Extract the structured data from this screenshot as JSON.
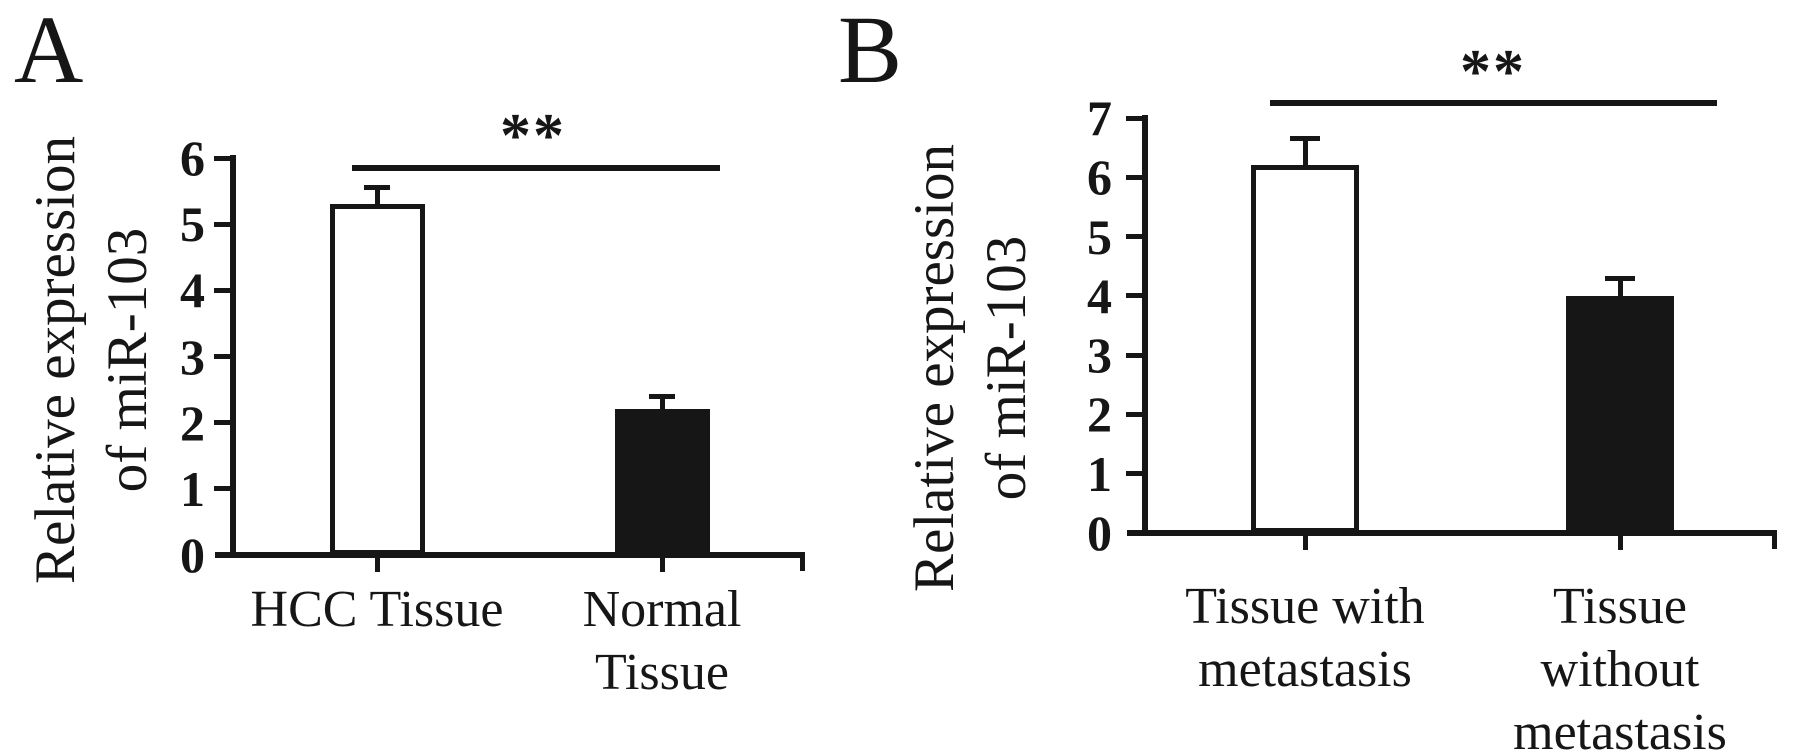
{
  "figure": {
    "background_color": "#ffffff",
    "ink_color": "#161616",
    "panels": [
      {
        "label": "A"
      },
      {
        "label": "B"
      }
    ]
  },
  "chart_data": [
    {
      "type": "bar",
      "panel": "A",
      "title": "",
      "xlabel": "",
      "ylabel": "Relative expression of miR-103",
      "ylabel_lines": [
        "Relative expression",
        "of miR-103"
      ],
      "categories": [
        "HCC Tissue",
        "Normal Tissue"
      ],
      "categories_lines": [
        [
          "HCC Tissue"
        ],
        [
          "Normal",
          "Tissue"
        ]
      ],
      "values": [
        5.3,
        2.2
      ],
      "errors_plus": [
        0.25,
        0.2
      ],
      "bar_fills": [
        "white",
        "black"
      ],
      "ylim": [
        0,
        6
      ],
      "yticks": [
        0,
        1,
        2,
        3,
        4,
        5,
        6
      ],
      "grid": false,
      "legend": null,
      "significance_label": "**",
      "significance_between": [
        "HCC Tissue",
        "Normal Tissue"
      ]
    },
    {
      "type": "bar",
      "panel": "B",
      "title": "",
      "xlabel": "",
      "ylabel": "Relative expression of miR-103",
      "ylabel_lines": [
        "Relative expression",
        "of miR-103"
      ],
      "categories": [
        "Tissue with metastasis",
        "Tissue without metastasis"
      ],
      "categories_lines": [
        [
          "Tissue with",
          "metastasis"
        ],
        [
          "Tissue",
          "without",
          "metastasis"
        ]
      ],
      "values": [
        6.2,
        4.0
      ],
      "errors_plus": [
        0.45,
        0.3
      ],
      "bar_fills": [
        "white",
        "black"
      ],
      "ylim": [
        0,
        7
      ],
      "yticks": [
        0,
        1,
        2,
        3,
        4,
        5,
        6,
        7
      ],
      "grid": false,
      "legend": null,
      "significance_label": "**",
      "significance_between": [
        "Tissue with metastasis",
        "Tissue without metastasis"
      ]
    }
  ]
}
